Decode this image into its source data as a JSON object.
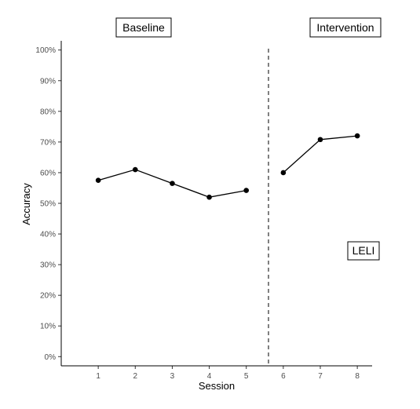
{
  "chart_data": {
    "type": "line",
    "xlabel": "Session",
    "ylabel": "Accuracy",
    "x_ticks": [
      "1",
      "2",
      "3",
      "4",
      "5",
      "6",
      "7",
      "8"
    ],
    "y_ticks": [
      "0%",
      "10%",
      "20%",
      "30%",
      "40%",
      "50%",
      "60%",
      "70%",
      "80%",
      "90%",
      "100%"
    ],
    "xlim": [
      0,
      8.4
    ],
    "ylim": [
      -0.03,
      1.03
    ],
    "grid": false,
    "phase_line_x": 5.6,
    "phases": [
      {
        "label": "Baseline",
        "sessions": [
          1,
          2,
          3,
          4,
          5
        ],
        "values": [
          0.575,
          0.61,
          0.565,
          0.52,
          0.542
        ]
      },
      {
        "label": "Intervention",
        "sessions": [
          6,
          7,
          8
        ],
        "values": [
          0.6,
          0.708,
          0.72
        ]
      }
    ],
    "annotation": "LELI",
    "colors": {
      "line": "#000000",
      "point": "#000000",
      "axis": "#000000",
      "tick_text": "#4d4d4d"
    }
  }
}
